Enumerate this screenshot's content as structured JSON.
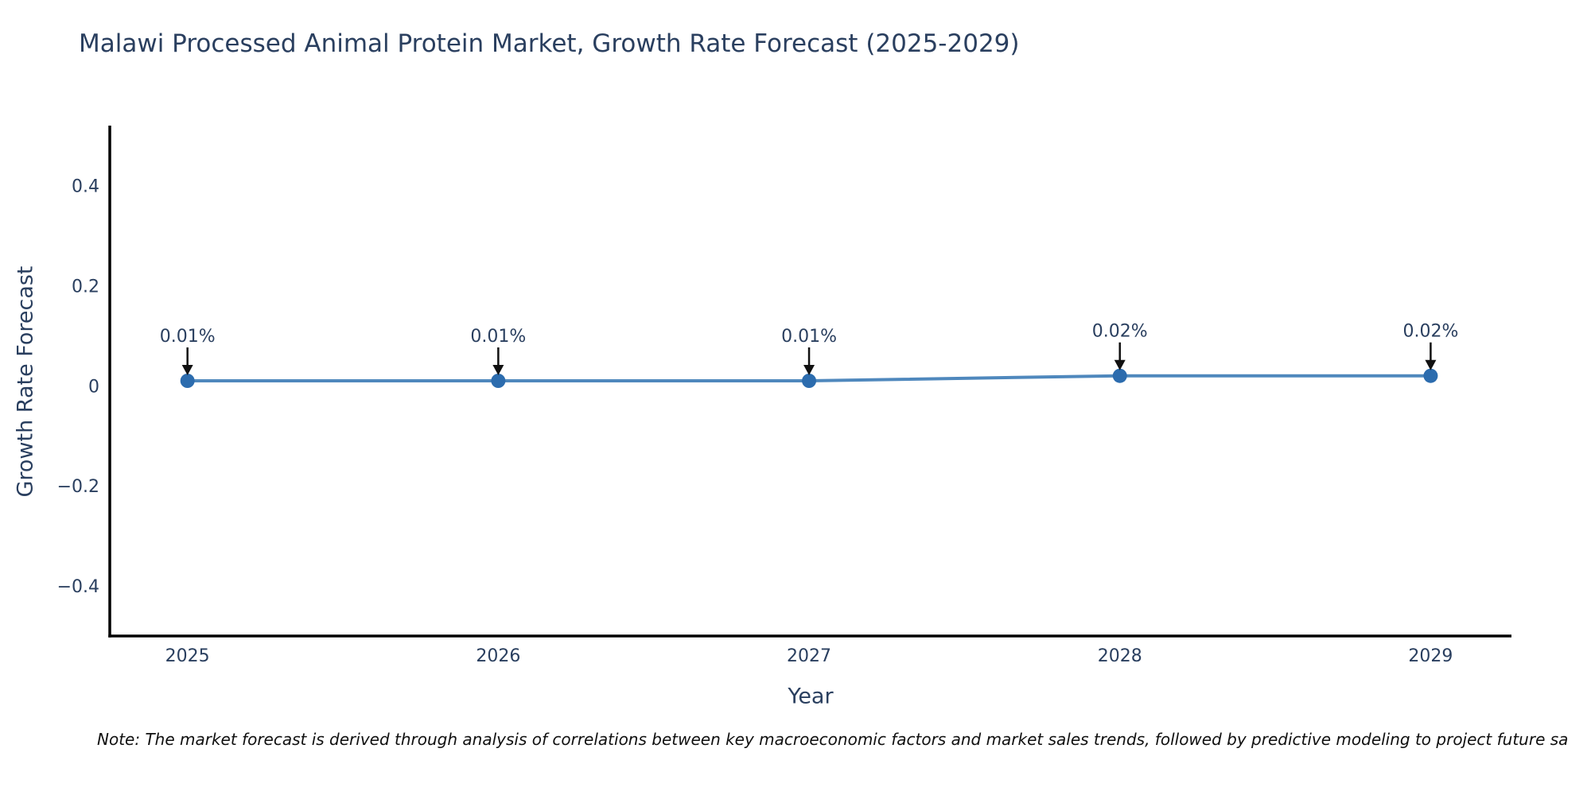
{
  "footnote": "Note: The market forecast is derived through analysis of correlations between key macroeconomic factors and market sales trends, followed by predictive modeling to project future sa",
  "chart_data": {
    "type": "line",
    "title": "Malawi Processed Animal Protein Market, Growth Rate Forecast (2025-2029)",
    "xlabel": "Year",
    "ylabel": "Growth Rate Forecast",
    "x": [
      2025,
      2026,
      2027,
      2028,
      2029
    ],
    "y": [
      0.01,
      0.01,
      0.01,
      0.02,
      0.02
    ],
    "point_labels": [
      "0.01%",
      "0.01%",
      "0.01%",
      "0.02%",
      "0.02%"
    ],
    "xticks": [
      2025,
      2026,
      2027,
      2028,
      2029
    ],
    "xtick_labels": [
      "2025",
      "2026",
      "2027",
      "2028",
      "2029"
    ],
    "yticks": [
      0.4,
      0.2,
      0,
      -0.2,
      -0.4
    ],
    "ytick_labels": [
      "0.4",
      "0.2",
      "0",
      "−0.2",
      "−0.4"
    ],
    "xlim": [
      2024.75,
      2029.26
    ],
    "ylim": [
      -0.5,
      0.52
    ],
    "grid": false,
    "legend": "none",
    "colors": {
      "line": "#4f88bd",
      "marker": "#2c6cae",
      "axis_spine": "#000000",
      "tick_text": "#2a3f5f",
      "title_text": "#2a3f5f",
      "annotation_text": "#2a3f5f",
      "annotation_arrow": "#111111",
      "background": "#ffffff"
    }
  }
}
